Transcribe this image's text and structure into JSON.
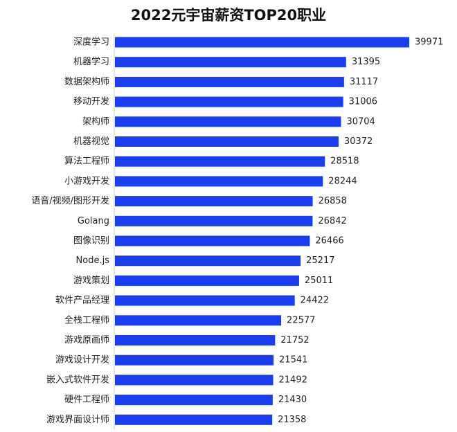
{
  "chart_data": {
    "type": "bar",
    "orientation": "horizontal",
    "title": "2022元宇宙薪资TOP20职业",
    "categories": [
      "深度学习",
      "机器学习",
      "数据架构师",
      "移动开发",
      "架构师",
      "机器视觉",
      "算法工程师",
      "小游戏开发",
      "语音/视频/图形开发",
      "Golang",
      "图像识别",
      "Node.js",
      "游戏策划",
      "软件产品经理",
      "全栈工程师",
      "游戏原画师",
      "游戏设计开发",
      "嵌入式软件开发",
      "硬件工程师",
      "游戏界面设计师"
    ],
    "values": [
      39971,
      31395,
      31117,
      31006,
      30704,
      30372,
      28518,
      28244,
      26858,
      26842,
      26466,
      25217,
      25011,
      24422,
      22577,
      21752,
      21541,
      21492,
      21430,
      21358
    ],
    "value_labels": [
      "39971",
      "31395",
      "31117",
      "31006",
      "30704",
      "30372",
      "28518",
      "28244",
      "26858",
      "26842",
      "26466",
      "25217",
      "25011",
      "24422",
      "22577",
      "21752",
      "21541",
      "21492",
      "21430",
      "21358"
    ],
    "bar_color": "#1a3df0",
    "grid": false,
    "legend": "none"
  }
}
